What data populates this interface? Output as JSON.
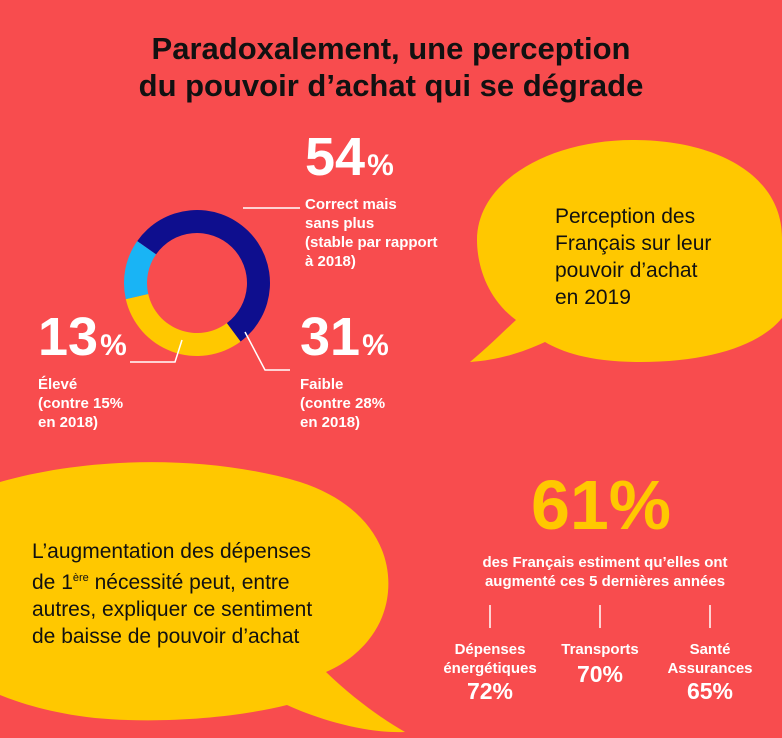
{
  "title": {
    "line1": "Paradoxalement, une perception",
    "line2": "du pouvoir d’achat qui se dégrade"
  },
  "colors": {
    "background": "#F84C4E",
    "navy": "#0E0E8E",
    "yellow": "#FFC800",
    "light_blue": "#19B4F5",
    "text_dark": "#111111"
  },
  "chart_data": {
    "type": "pie",
    "donut": true,
    "slices": [
      {
        "label": "Correct mais sans plus",
        "value": 54,
        "color": "#0E0E8E"
      },
      {
        "label": "Faible",
        "value": 31,
        "color": "#FFC800"
      },
      {
        "label": "Élevé",
        "value": 13,
        "color": "#19B4F5"
      }
    ]
  },
  "slice_labels": {
    "correct": {
      "pct": "54",
      "sym": "%",
      "l1": "Correct mais",
      "l2": "sans plus",
      "l3": "(stable par rapport",
      "l4": "à 2018)"
    },
    "faible": {
      "pct": "31",
      "sym": "%",
      "l1": "Faible",
      "l2": "(contre 28%",
      "l3": "en 2018)"
    },
    "eleve": {
      "pct": "13",
      "sym": "%",
      "l1": "Élevé",
      "l2": "(contre 15%",
      "l3": "en 2018)"
    }
  },
  "bubble_right": {
    "l1": "Perception des",
    "l2": "Français sur leur",
    "l3": "pouvoir d’achat",
    "l4": "en 2019"
  },
  "bubble_left": {
    "l1": "L’augmentation des dépenses",
    "l2_pre": "de 1",
    "l2_sup": "ère",
    "l2_post": " nécessité peut, entre",
    "l3": "autres, expliquer ce sentiment",
    "l4": "de baisse de pouvoir d’achat"
  },
  "spending": {
    "big_pct": "61%",
    "head1": "des Français estiment qu’elles ont",
    "head2": "augmenté ces 5 dernières années",
    "categories": [
      {
        "l1": "Dépenses",
        "l2": "énergétiques",
        "pct": "72%"
      },
      {
        "l1": "Transports",
        "l2": "",
        "pct": "70%"
      },
      {
        "l1": "Santé",
        "l2": "Assurances",
        "pct": "65%"
      }
    ]
  }
}
